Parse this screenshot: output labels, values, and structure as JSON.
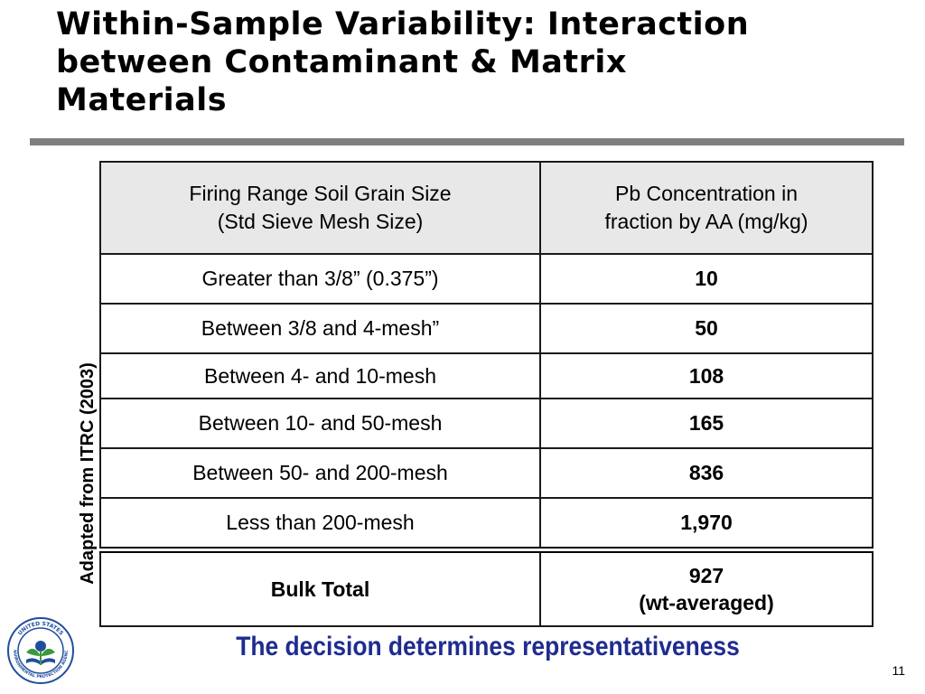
{
  "title": {
    "line1": "Within-Sample Variability: Interaction",
    "line2": "between Contaminant & Matrix",
    "line3": "Materials"
  },
  "side_caption": "Adapted from ITRC (2003)",
  "table": {
    "headers": [
      {
        "line1": "Firing Range Soil Grain Size",
        "line2": "(Std Sieve Mesh Size)"
      },
      {
        "line1": "Pb Concentration in",
        "line2": "fraction by AA (mg/kg)"
      }
    ],
    "rows": [
      {
        "size": "Greater than 3/8” (0.375”)",
        "value": "10"
      },
      {
        "size": "Between 3/8 and 4-mesh”",
        "value": "50"
      },
      {
        "size": "Between 4- and 10-mesh",
        "value": "108"
      },
      {
        "size": "Between 10- and 50-mesh",
        "value": "165"
      },
      {
        "size": "Between 50- and 200-mesh",
        "value": "836"
      },
      {
        "size": "Less than 200-mesh",
        "value": "1,970"
      }
    ],
    "total": {
      "label": "Bulk Total",
      "value_line1": "927",
      "value_line2": "(wt-averaged)"
    }
  },
  "logo": {
    "icon": "epa-seal-icon",
    "ring_text": "UNITED STATES ENVIRONMENTAL PROTECTION AGENCY",
    "colors": {
      "ring": "#1f4e9c",
      "flower": "#1f4e9c",
      "leaf": "#3a9a3a"
    }
  },
  "footer": {
    "statement": "The decision determines representativeness",
    "page_number": "11"
  },
  "colors": {
    "rule": "#7f7f7f",
    "header_fill": "#e8e8e8",
    "statement_text": "#1f2c8f"
  }
}
